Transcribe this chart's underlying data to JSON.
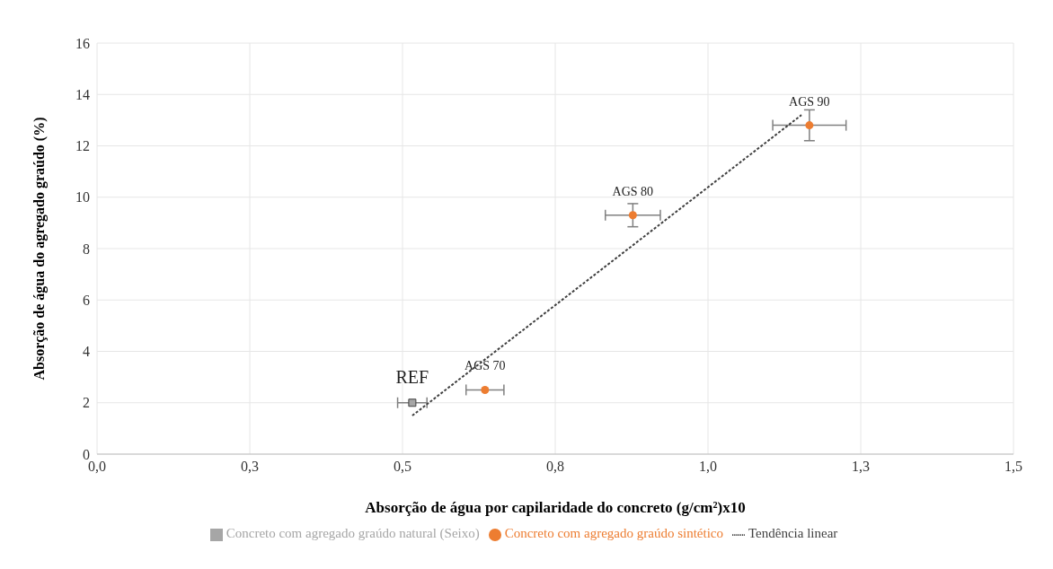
{
  "chart_data": {
    "type": "scatter",
    "xlabel": "Absorção de água por capilaridade do concreto (g/cm²)x10",
    "ylabel": "Absorção de água do agregado graúdo (%)",
    "xlim": [
      0,
      1.5
    ],
    "xticks": [
      {
        "value": 0,
        "label": "0,0"
      },
      {
        "value": 0.25,
        "label": "0,3"
      },
      {
        "value": 0.5,
        "label": "0,5"
      },
      {
        "value": 0.75,
        "label": "0,8"
      },
      {
        "value": 1,
        "label": "1,0"
      },
      {
        "value": 1.25,
        "label": "1,3"
      },
      {
        "value": 1.5,
        "label": "1,5"
      }
    ],
    "ylim": [
      0,
      16
    ],
    "yticks": [
      0,
      2,
      4,
      6,
      8,
      10,
      12,
      14,
      16
    ],
    "grid": true,
    "legend": "bottom",
    "series": [
      {
        "name": "Concreto com agregado graúdo natural (Seixo)",
        "color": "#a6a6a6",
        "marker": "square",
        "x": [
          0.516
        ],
        "values": [
          2.0
        ],
        "xerrors": [
          0.024
        ]
      },
      {
        "name": "Concreto com agregado graúdo sintético",
        "color": "#ed7d31",
        "marker": "circle",
        "x": [
          0.635,
          0.877,
          1.166
        ],
        "values": [
          2.5,
          9.3,
          12.8
        ],
        "xerrors": [
          0.031,
          0.045,
          0.06
        ],
        "errors": [
          null,
          0.45,
          0.6
        ]
      },
      {
        "name": "Tendência linear",
        "type": "line",
        "color": "#404040",
        "line_style": "dotted",
        "marker": "none",
        "x": [
          0.516,
          1.153
        ],
        "values": [
          1.5,
          13.2
        ]
      }
    ],
    "annotations": [
      {
        "text": "REF",
        "x": 0.516,
        "y": 2.0
      },
      {
        "text": "AGS 70",
        "x": 0.635,
        "y": 2.5
      },
      {
        "text": "AGS 80",
        "x": 0.877,
        "y": 9.3
      },
      {
        "text": "AGS 90",
        "x": 1.166,
        "y": 12.8
      }
    ]
  }
}
